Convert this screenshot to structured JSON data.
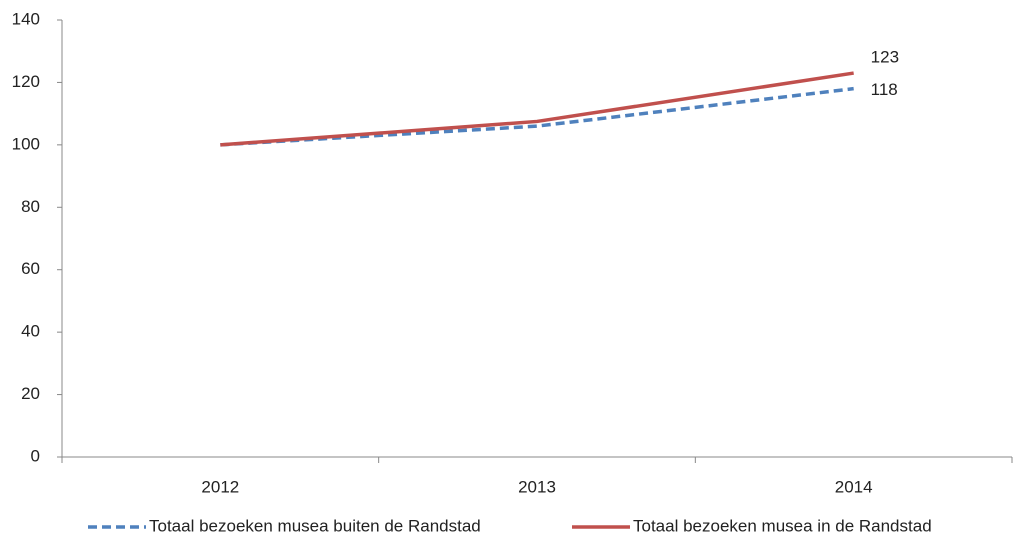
{
  "chart_data": {
    "type": "line",
    "categories": [
      "2012",
      "2013",
      "2014"
    ],
    "series": [
      {
        "name": "Totaal bezoeken musea buiten de Randstad",
        "color": "#4f81bd",
        "dash": true,
        "values": [
          100,
          106,
          118
        ]
      },
      {
        "name": "Totaal bezoeken musea in de Randstad",
        "color": "#c0504d",
        "dash": false,
        "values": [
          100,
          107.5,
          123
        ]
      }
    ],
    "data_labels": [
      {
        "series": 1,
        "index": 2
      },
      {
        "series": 0,
        "index": 2
      }
    ],
    "ylim": [
      0,
      140
    ],
    "yticks": [
      0,
      20,
      40,
      60,
      80,
      100,
      120,
      140
    ],
    "grid": false
  }
}
